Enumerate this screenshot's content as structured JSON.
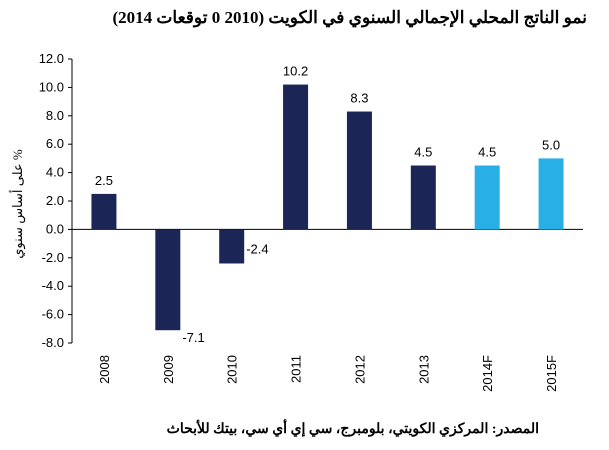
{
  "title": "نمو الناتج المحلي الإجمالي السنوي في الكويت (2010 0 توقعات 2014)",
  "source": "المصدر: المركزي الكويتي، بلومبرج، سي إي أي سي، بيتك للأبحاث",
  "chart_data": {
    "type": "bar",
    "title": "نمو الناتج المحلي الإجمالي السنوي في الكويت (2010 0 توقعات 2014)",
    "xlabel": "",
    "ylabel": "% على أساس سنوي",
    "ylim": [
      -8.0,
      12.0
    ],
    "yticks": [
      "12.0",
      "10.0",
      "8.0",
      "6.0",
      "4.0",
      "2.0",
      "0.0",
      "-2.0",
      "-4.0",
      "-6.0",
      "-8.0"
    ],
    "ytick_values": [
      12,
      10,
      8,
      6,
      4,
      2,
      0,
      -2,
      -4,
      -6,
      -8
    ],
    "grid": false,
    "categories": [
      "2008",
      "2009",
      "2010",
      "2011",
      "2012",
      "2013",
      "2014F",
      "2015F"
    ],
    "values": [
      2.5,
      -7.1,
      -2.4,
      10.2,
      8.3,
      4.5,
      4.5,
      5.0
    ],
    "data_labels": [
      "2.5",
      "-7.1",
      "-2.4",
      "10.2",
      "8.3",
      "4.5",
      "4.5",
      "5.0"
    ],
    "forecast": [
      false,
      false,
      false,
      false,
      false,
      false,
      true,
      true
    ],
    "colors": {
      "actual": "#1c2656",
      "forecast": "#28b0e6"
    }
  }
}
